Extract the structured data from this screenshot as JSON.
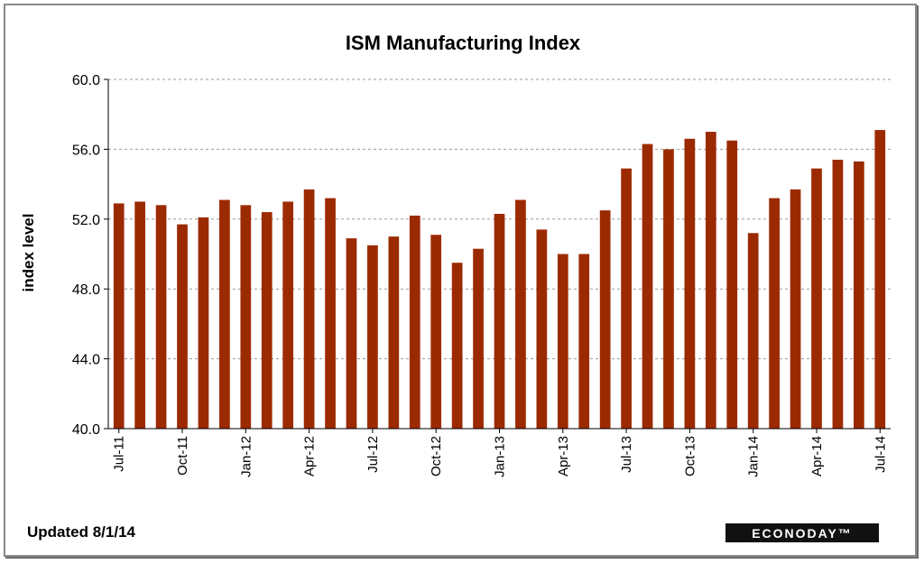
{
  "chart_data": {
    "type": "bar",
    "title": "ISM Manufacturing Index",
    "xlabel": "",
    "ylabel": "index level",
    "ylim": [
      40,
      60
    ],
    "yticks": [
      "40.0",
      "44.0",
      "48.0",
      "52.0",
      "56.0",
      "60.0"
    ],
    "grid": true,
    "bar_color": "#9c2a00",
    "categories": [
      "Jul-11",
      "Aug-11",
      "Sep-11",
      "Oct-11",
      "Nov-11",
      "Dec-11",
      "Jan-12",
      "Feb-12",
      "Mar-12",
      "Apr-12",
      "May-12",
      "Jun-12",
      "Jul-12",
      "Aug-12",
      "Sep-12",
      "Oct-12",
      "Nov-12",
      "Dec-12",
      "Jan-13",
      "Feb-13",
      "Mar-13",
      "Apr-13",
      "May-13",
      "Jun-13",
      "Jul-13",
      "Aug-13",
      "Sep-13",
      "Oct-13",
      "Nov-13",
      "Dec-13",
      "Jan-14",
      "Feb-14",
      "Mar-14",
      "Apr-14",
      "May-14",
      "Jun-14",
      "Jul-14"
    ],
    "tick_labels": [
      "Jul-11",
      "",
      "",
      "Oct-11",
      "",
      "",
      "Jan-12",
      "",
      "",
      "Apr-12",
      "",
      "",
      "Jul-12",
      "",
      "",
      "Oct-12",
      "",
      "",
      "Jan-13",
      "",
      "",
      "Apr-13",
      "",
      "",
      "Jul-13",
      "",
      "",
      "Oct-13",
      "",
      "",
      "Jan-14",
      "",
      "",
      "Apr-14",
      "",
      "",
      "Jul-14"
    ],
    "values": [
      52.9,
      53.0,
      52.8,
      51.7,
      52.1,
      53.1,
      52.8,
      52.4,
      53.0,
      53.7,
      53.2,
      50.9,
      50.5,
      51.0,
      52.2,
      51.1,
      49.5,
      50.3,
      52.3,
      53.1,
      51.4,
      50.0,
      50.0,
      52.5,
      54.9,
      56.3,
      56.0,
      56.6,
      57.0,
      56.5,
      51.2,
      53.2,
      53.7,
      54.9,
      55.4,
      55.3,
      57.1
    ]
  },
  "footer": {
    "updated": "Updated  8/1/14",
    "brand": "ECONODAY™"
  }
}
